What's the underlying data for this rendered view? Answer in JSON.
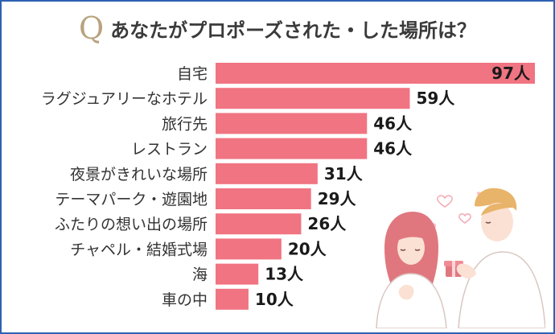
{
  "title": {
    "q_mark": "Q",
    "text": "あなたがプロポーズされた・した場所は？"
  },
  "chart_data": {
    "type": "bar",
    "orientation": "horizontal",
    "categories": [
      "自宅",
      "ラグジュアリーなホテル",
      "旅行先",
      "レストラン",
      "夜景がきれいな場所",
      "テーマパーク・遊園地",
      "ふたりの想い出の場所",
      "チャペル・結婚式場",
      "海",
      "車の中"
    ],
    "values": [
      97,
      59,
      46,
      46,
      31,
      29,
      26,
      20,
      13,
      10
    ],
    "value_labels": [
      "97人",
      "59人",
      "46人",
      "46人",
      "31人",
      "29人",
      "26人",
      "20人",
      "13人",
      "10人"
    ],
    "xlim": [
      0,
      97
    ],
    "grid": false,
    "legend": "none",
    "colors": {
      "bar": "#f07482",
      "value_text": "#1a1a1a",
      "category_text": "#333333"
    }
  },
  "colors": {
    "frame": "#2e61b3",
    "q_mark": "#b9a27e",
    "title": "#3a3a3a"
  },
  "illustration": {
    "description_icon": "couple-proposal-illustration"
  }
}
